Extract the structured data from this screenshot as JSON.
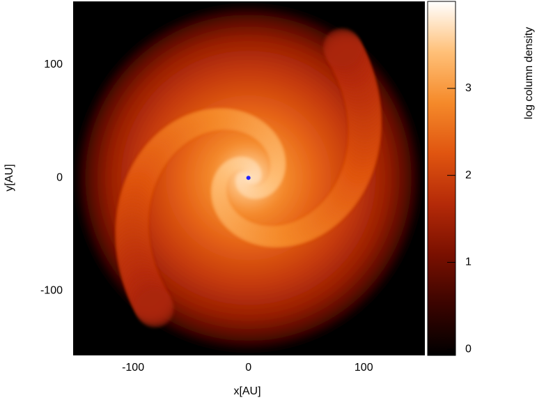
{
  "chart_data": {
    "type": "image",
    "x_label": "x[AU]",
    "y_label": "y[AU]",
    "colorbar_label": "log column density",
    "xlim": [
      -152,
      153
    ],
    "ylim": [
      -157,
      156
    ],
    "xticks": [
      -100,
      0,
      100
    ],
    "yticks": [
      -100,
      0,
      100
    ],
    "clim": [
      -0.07,
      4.0
    ],
    "cticks": [
      0,
      1,
      2,
      3
    ],
    "colormap": [
      "#000000",
      "#3a0400",
      "#7a1000",
      "#b52a08",
      "#e05510",
      "#f58a2a",
      "#ffc078",
      "#ffffff"
    ],
    "star": {
      "x": 0,
      "y": 0,
      "color": "#2020ff"
    }
  }
}
